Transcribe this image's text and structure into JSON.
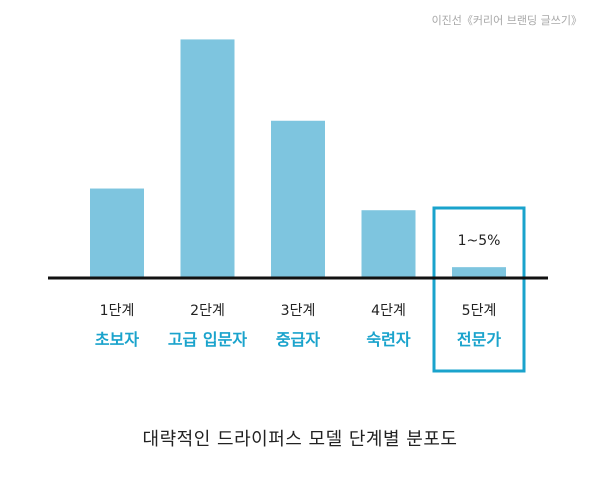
{
  "source": "이진선《커리어 브랜딩 글쓰기》",
  "caption": "대략적인 드라이퍼스 모델 단계별 분포도",
  "colors": {
    "bar": "#7ec5df",
    "accent": "#1aa3cc",
    "axis": "#111111",
    "text": "#222222"
  },
  "chart_data": {
    "type": "bar",
    "categories": [
      "1단계",
      "2단계",
      "3단계",
      "4단계",
      "5단계"
    ],
    "sublabels": [
      "초보자",
      "고급 입문자",
      "중급자",
      "숙련자",
      "전문가"
    ],
    "values": [
      33,
      88,
      58,
      25,
      4
    ],
    "ylim": [
      0,
      90
    ],
    "highlight_index": 4,
    "annotations": [
      {
        "category": "5단계",
        "text": "1~5%"
      }
    ],
    "grid": false
  }
}
